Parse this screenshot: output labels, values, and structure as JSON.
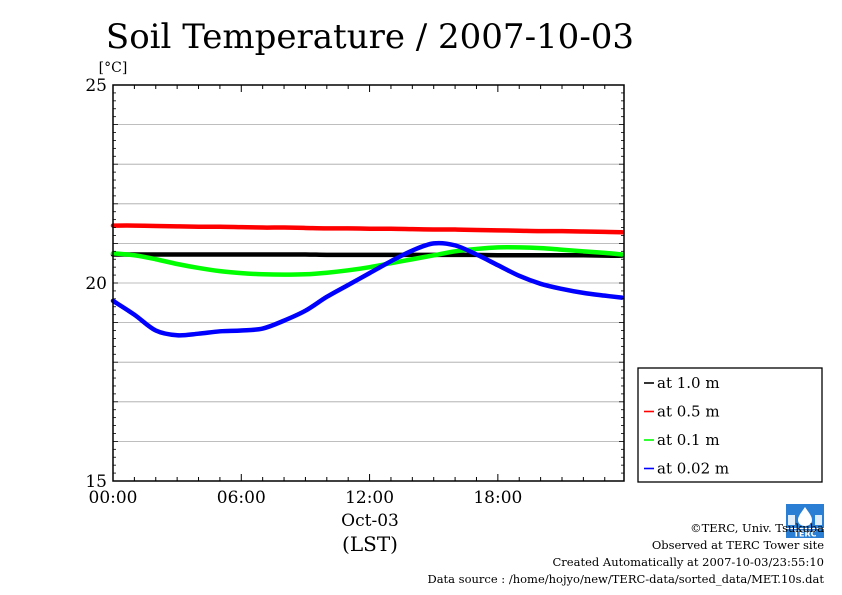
{
  "chart_data": {
    "type": "line",
    "title": "Soil Temperature / 2007-10-03",
    "ylabel": "[°C]",
    "xlabel": "(LST)",
    "date_label": "Oct-03",
    "ylim": [
      15,
      25
    ],
    "yticks": [
      "15",
      "20",
      "25"
    ],
    "xlim_hours": [
      0,
      23.9
    ],
    "xticks": [
      "00:00",
      "06:00",
      "12:00",
      "18:00"
    ],
    "x_hours": [
      0,
      1,
      2,
      3,
      4,
      5,
      6,
      7,
      8,
      9,
      10,
      11,
      12,
      13,
      14,
      15,
      16,
      17,
      18,
      19,
      20,
      21,
      22,
      23,
      23.8
    ],
    "grid": true,
    "legend_position": "bottom-right outside",
    "series": [
      {
        "name": "at 1.0 m",
        "color": "#000000",
        "values": [
          20.72,
          20.72,
          20.72,
          20.72,
          20.72,
          20.72,
          20.72,
          20.72,
          20.72,
          20.72,
          20.71,
          20.71,
          20.71,
          20.71,
          20.71,
          20.71,
          20.71,
          20.71,
          20.7,
          20.7,
          20.7,
          20.7,
          20.7,
          20.69,
          20.69
        ]
      },
      {
        "name": "at 0.5 m",
        "color": "#ff0000",
        "values": [
          21.45,
          21.45,
          21.44,
          21.43,
          21.42,
          21.42,
          21.41,
          21.4,
          21.4,
          21.39,
          21.38,
          21.38,
          21.37,
          21.37,
          21.36,
          21.35,
          21.35,
          21.34,
          21.33,
          21.32,
          21.31,
          21.31,
          21.3,
          21.29,
          21.28
        ]
      },
      {
        "name": "at 0.1 m",
        "color": "#00ff00",
        "values": [
          20.75,
          20.7,
          20.6,
          20.48,
          20.38,
          20.3,
          20.25,
          20.22,
          20.21,
          20.22,
          20.26,
          20.32,
          20.4,
          20.5,
          20.6,
          20.7,
          20.8,
          20.86,
          20.9,
          20.9,
          20.88,
          20.84,
          20.8,
          20.76,
          20.72
        ]
      },
      {
        "name": "at 0.02 m",
        "color": "#0000ff",
        "values": [
          19.55,
          19.2,
          18.8,
          18.68,
          18.72,
          18.78,
          18.8,
          18.85,
          19.05,
          19.3,
          19.65,
          19.95,
          20.25,
          20.55,
          20.82,
          21.0,
          20.95,
          20.72,
          20.45,
          20.18,
          19.98,
          19.85,
          19.75,
          19.68,
          19.63
        ]
      }
    ]
  },
  "footer": {
    "copyright": "©TERC, Univ. Tsukuba",
    "site": "Observed at TERC Tower site",
    "created": "Created Automatically at 2007-10-03/23:55:10",
    "source": "Data source : /home/hojyo/new/TERC-data/sorted_data/MET.10s.dat"
  },
  "logo": {
    "text": "TERC"
  }
}
